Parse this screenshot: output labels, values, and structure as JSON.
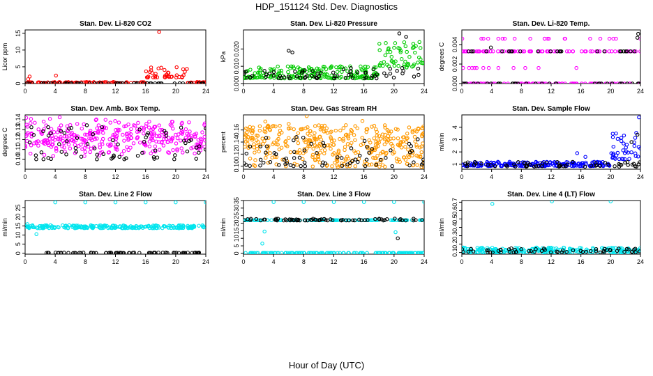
{
  "title": "HDP_151124  Std. Dev. Diagnostics",
  "xlabel": "Hour of Day (UTC)",
  "chart_data": [
    {
      "type": "scatter",
      "title": "Stan. Dev. Li-820 CO2",
      "ylabel": "Licor ppm",
      "xlim": [
        0,
        24
      ],
      "ylim": [
        0,
        16
      ],
      "xticks": [
        0,
        4,
        8,
        12,
        16,
        20,
        24
      ],
      "yticks": [
        0,
        5,
        10,
        15
      ],
      "series": [
        {
          "name": "primary",
          "color": "#ff0000",
          "gen": {
            "base": 0.15,
            "spread": 0.3,
            "n": 150,
            "bumps": [
              {
                "from": 16,
                "to": 21.5,
                "base": 1.8,
                "spread": 3.5
              }
            ],
            "extras": [
              {
                "x": 17.8,
                "y": 15.4
              },
              {
                "x": 4.1,
                "y": 2.4
              },
              {
                "x": 0.6,
                "y": 2.1
              },
              {
                "x": 0.4,
                "y": 1.3
              }
            ]
          }
        },
        {
          "name": "secondary",
          "color": "#000000",
          "gen": {
            "base": 0.05,
            "spread": 0.05,
            "n": 60
          }
        }
      ]
    },
    {
      "type": "scatter",
      "title": "Stan. Dev. Li-820 Pressure",
      "ylabel": "kPa",
      "xlim": [
        0,
        24
      ],
      "ylim": [
        0,
        0.031
      ],
      "xticks": [
        0,
        4,
        8,
        12,
        16,
        20,
        24
      ],
      "yticks": [
        0,
        0.01,
        0.02
      ],
      "ytick_labels": [
        "0.000",
        "0.010",
        "0.020"
      ],
      "series": [
        {
          "name": "primary",
          "color": "#00cc00",
          "gen": {
            "base": 0.003,
            "spread": 0.007,
            "n": 260,
            "bumps": [
              {
                "from": 18,
                "to": 24,
                "base": 0.009,
                "spread": 0.015
              }
            ]
          }
        },
        {
          "name": "secondary",
          "color": "#000000",
          "gen": {
            "base": 0.003,
            "spread": 0.006,
            "n": 70,
            "extras": [
              {
                "x": 20.7,
                "y": 0.029
              },
              {
                "x": 21.6,
                "y": 0.027
              },
              {
                "x": 6.0,
                "y": 0.019
              },
              {
                "x": 6.5,
                "y": 0.018
              }
            ]
          }
        }
      ]
    },
    {
      "type": "scatter",
      "title": "Stan. Dev. Li-820 Temp.",
      "ylabel": "degrees C",
      "xlim": [
        0,
        24
      ],
      "ylim": [
        0,
        0.0055
      ],
      "xticks": [
        0,
        4,
        8,
        12,
        16,
        20,
        24
      ],
      "yticks": [
        0,
        0.002,
        0.004
      ],
      "ytick_labels": [
        "0.000",
        "0.002",
        "0.004"
      ],
      "series": [
        {
          "name": "primary",
          "color": "#ff00ff",
          "gen": {
            "levels": [
              0,
              0.0016,
              0.0033,
              0.0046
            ],
            "weights": [
              0.45,
              0.05,
              0.4,
              0.1
            ],
            "n": 200
          }
        },
        {
          "name": "secondary",
          "color": "#000000",
          "gen": {
            "levels": [
              0,
              0.0033
            ],
            "weights": [
              0.6,
              0.4
            ],
            "n": 60,
            "extras": [
              {
                "x": 23.7,
                "y": 0.0051
              },
              {
                "x": 3.9,
                "y": 0.0037
              },
              {
                "x": 23.6,
                "y": 0.0047
              }
            ]
          }
        }
      ]
    },
    {
      "type": "scatter",
      "title": "Stan. Dev. Amb. Box Temp.",
      "ylabel": "degrees C",
      "xlim": [
        0,
        24
      ],
      "ylim": [
        0.09,
        0.145
      ],
      "xticks": [
        0,
        4,
        8,
        12,
        16,
        20,
        24
      ],
      "yticks": [
        0.1,
        0.11,
        0.12,
        0.13,
        0.14
      ],
      "ytick_labels": [
        "0.10",
        "0.11",
        "0.12",
        "0.13",
        "0.14"
      ],
      "series": [
        {
          "name": "primary",
          "color": "#ff00ff",
          "gen": {
            "base": 0.1,
            "spread": 0.043,
            "n": 340,
            "center": true
          }
        },
        {
          "name": "secondary",
          "color": "#000000",
          "gen": {
            "base": 0.1,
            "spread": 0.035,
            "n": 70
          }
        }
      ]
    },
    {
      "type": "scatter",
      "title": "Stan. Dev. Gas Stream RH",
      "ylabel": "percent",
      "xlim": [
        0,
        24
      ],
      "ylim": [
        0.095,
        0.185
      ],
      "xticks": [
        0,
        4,
        8,
        12,
        16,
        20,
        24
      ],
      "yticks": [
        0.1,
        0.12,
        0.14,
        0.16
      ],
      "ytick_labels": [
        "0.10",
        "0.12",
        "0.14",
        "0.16"
      ],
      "series": [
        {
          "name": "primary",
          "color": "#ff9900",
          "gen": {
            "base": 0.098,
            "spread": 0.07,
            "n": 380,
            "dense": true,
            "extras": [
              {
                "x": 8.4,
                "y": 0.183
              },
              {
                "x": 2.9,
                "y": 0.174
              },
              {
                "x": 15.8,
                "y": 0.175
              },
              {
                "x": 6.0,
                "y": 0.17
              }
            ]
          }
        },
        {
          "name": "secondary",
          "color": "#000000",
          "gen": {
            "base": 0.1,
            "spread": 0.05,
            "n": 70
          }
        }
      ]
    },
    {
      "type": "scatter",
      "title": "Stan. Dev. Sample Flow",
      "ylabel": "ml/min",
      "xlim": [
        0,
        24
      ],
      "ylim": [
        0.6,
        5
      ],
      "xticks": [
        0,
        4,
        8,
        12,
        16,
        20,
        24
      ],
      "yticks": [
        1,
        2,
        3,
        4
      ],
      "series": [
        {
          "name": "primary",
          "color": "#0000ff",
          "gen": {
            "base": 0.85,
            "spread": 0.35,
            "n": 230,
            "bumps": [
              {
                "from": 20,
                "to": 24,
                "base": 1.4,
                "spread": 2.2
              }
            ],
            "extras": [
              {
                "x": 23.8,
                "y": 4.8
              },
              {
                "x": 15.5,
                "y": 1.9
              },
              {
                "x": 16.6,
                "y": 1.6
              }
            ]
          }
        },
        {
          "name": "secondary",
          "color": "#000000",
          "gen": {
            "base": 0.8,
            "spread": 0.4,
            "n": 60,
            "extras": [
              {
                "x": 23.6,
                "y": 3.4
              },
              {
                "x": 22.8,
                "y": 2.8
              }
            ]
          }
        }
      ]
    },
    {
      "type": "scatter",
      "title": "Stan. Dev. Line 2 Flow",
      "ylabel": "ml/min",
      "xlim": [
        0,
        24
      ],
      "ylim": [
        -0.5,
        29
      ],
      "xticks": [
        0,
        4,
        8,
        12,
        16,
        20,
        24
      ],
      "yticks": [
        0,
        5,
        10,
        15,
        20,
        25
      ],
      "series": [
        {
          "name": "primary",
          "color": "#00e5ee",
          "gen": {
            "base": 13.8,
            "spread": 1.6,
            "n": 240,
            "extras": [
              {
                "x": 4.0,
                "y": 28
              },
              {
                "x": 8.0,
                "y": 28
              },
              {
                "x": 12.0,
                "y": 28
              },
              {
                "x": 16.0,
                "y": 28
              },
              {
                "x": 20.0,
                "y": 28
              },
              {
                "x": 24.0,
                "y": 28
              },
              {
                "x": 0.3,
                "y": 16
              },
              {
                "x": 1.5,
                "y": 10.5
              }
            ]
          }
        },
        {
          "name": "secondary",
          "color": "#000000",
          "gen": {
            "base": 0.1,
            "spread": 0.3,
            "n": 70
          }
        }
      ]
    },
    {
      "type": "scatter",
      "title": "Stan. Dev. Line 3 Flow",
      "ylabel": "ml/min",
      "xlim": [
        0,
        24
      ],
      "ylim": [
        -0.5,
        35
      ],
      "xticks": [
        0,
        4,
        8,
        12,
        16,
        20,
        24
      ],
      "yticks": [
        0,
        5,
        10,
        15,
        20,
        25,
        30,
        35
      ],
      "series": [
        {
          "name": "primary",
          "color": "#00e5ee",
          "gen": {
            "levels": [
              0.3,
              22
            ],
            "weights": [
              0.55,
              0.45
            ],
            "n": 260,
            "extras": [
              {
                "x": 4.0,
                "y": 34
              },
              {
                "x": 8.0,
                "y": 34
              },
              {
                "x": 12.0,
                "y": 34
              },
              {
                "x": 16.0,
                "y": 34
              },
              {
                "x": 20.0,
                "y": 34
              },
              {
                "x": 24.0,
                "y": 34
              },
              {
                "x": 2.5,
                "y": 6.5
              },
              {
                "x": 2.8,
                "y": 14.5
              },
              {
                "x": 20.2,
                "y": 14
              }
            ]
          }
        },
        {
          "name": "secondary",
          "color": "#000000",
          "gen": {
            "base": 21.8,
            "spread": 1.2,
            "n": 70,
            "extras": [
              {
                "x": 20.5,
                "y": 10
              },
              {
                "x": 20.1,
                "y": 23
              }
            ]
          }
        }
      ]
    },
    {
      "type": "scatter",
      "title": "Stan. Dev. Line 4 (LT) Flow",
      "ylabel": "ml/min",
      "xlim": [
        0,
        24
      ],
      "ylim": [
        0.08,
        0.72
      ],
      "xticks": [
        0,
        4,
        8,
        12,
        16,
        20,
        24
      ],
      "yticks": [
        0.1,
        0.2,
        0.3,
        0.4,
        0.5,
        0.6,
        0.7
      ],
      "ytick_labels": [
        "0.1",
        "0.2",
        "0.3",
        "0.4",
        "0.5",
        "0.6",
        "0.7"
      ],
      "series": [
        {
          "name": "primary",
          "color": "#00e5ee",
          "gen": {
            "base": 0.1,
            "spread": 0.06,
            "n": 240,
            "extras": [
              {
                "x": 4.1,
                "y": 0.68
              },
              {
                "x": 12.1,
                "y": 0.71
              },
              {
                "x": 20.0,
                "y": 0.71
              }
            ]
          }
        },
        {
          "name": "secondary",
          "color": "#000000",
          "gen": {
            "base": 0.1,
            "spread": 0.05,
            "n": 60
          }
        }
      ]
    }
  ]
}
